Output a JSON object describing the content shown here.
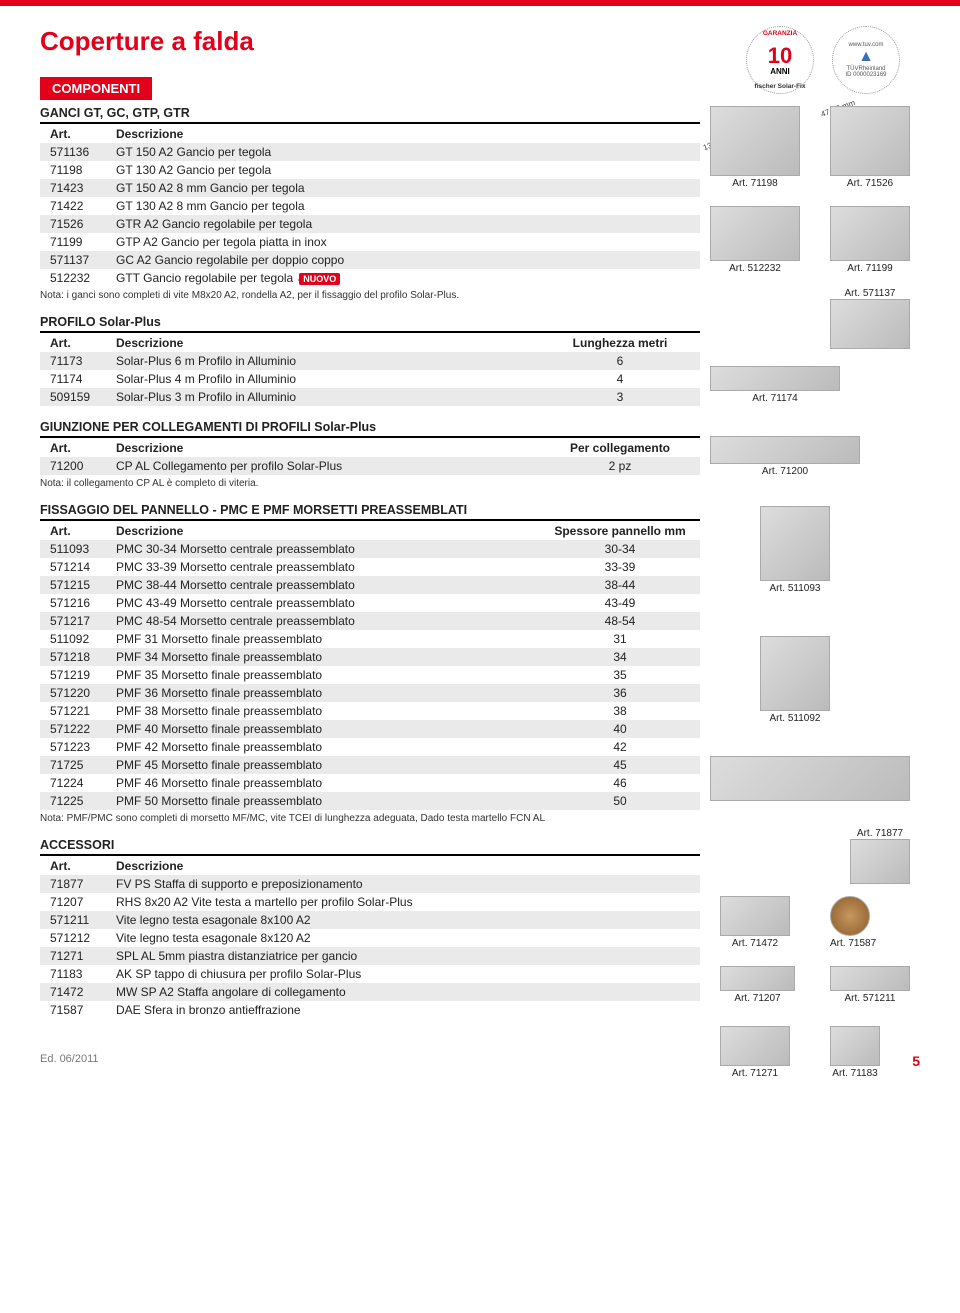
{
  "page": {
    "title": "Coperture a falda",
    "section_tag": "COMPONENTI",
    "edition": "Ed. 06/2011",
    "page_number": "5"
  },
  "badges": {
    "warranty_top": "GARANZIA",
    "warranty_years": "10",
    "warranty_anni": "ANNI",
    "warranty_bottom": "fischer Solar-Fix",
    "tuv_url": "www.tuv.com",
    "tuv_name": "TÜVRheinland",
    "tuv_id": "ID 0000023169"
  },
  "columns": {
    "art": "Art.",
    "desc": "Descrizione",
    "len": "Lunghezza metri",
    "per_coll": "Per collegamento",
    "spessore": "Spessore pannello mm"
  },
  "ganci": {
    "title": "GANCI GT, GC, GTP, GTR",
    "rows": [
      {
        "art": "571136",
        "desc": "GT 150 A2 Gancio per tegola"
      },
      {
        "art": "71198",
        "desc": "GT 130 A2 Gancio per tegola"
      },
      {
        "art": "71423",
        "desc": "GT 150 A2 8 mm Gancio per tegola"
      },
      {
        "art": "71422",
        "desc": "GT 130 A2 8 mm Gancio per tegola"
      },
      {
        "art": "71526",
        "desc": "GTR A2 Gancio regolabile per tegola"
      },
      {
        "art": "71199",
        "desc": "GTP A2 Gancio per tegola piatta in inox"
      },
      {
        "art": "571137",
        "desc": "GC A2 Gancio regolabile per doppio coppo"
      },
      {
        "art": "512232",
        "desc": "GTT Gancio regolabile per tegola",
        "nuovo": "NUOVO"
      }
    ],
    "note": "Nota: i ganci sono completi di vite M8x20 A2, rondella A2, per il fissaggio del profilo Solar-Plus."
  },
  "profilo": {
    "title": "PROFILO Solar-Plus",
    "rows": [
      {
        "art": "71173",
        "desc": "Solar-Plus 6 m Profilo in Alluminio",
        "len": "6"
      },
      {
        "art": "71174",
        "desc": "Solar-Plus 4 m Profilo in Alluminio",
        "len": "4"
      },
      {
        "art": "509159",
        "desc": "Solar-Plus 3 m Profilo in Alluminio",
        "len": "3"
      }
    ]
  },
  "giunzione": {
    "title": "GIUNZIONE PER COLLEGAMENTI DI PROFILI Solar-Plus",
    "rows": [
      {
        "art": "71200",
        "desc": "CP AL Collegamento per profilo Solar-Plus",
        "per": "2 pz"
      }
    ],
    "note": "Nota: il collegamento CP AL è completo di viteria."
  },
  "fissaggio": {
    "title": "FISSAGGIO DEL PANNELLO - PMC E PMF MORSETTI PREASSEMBLATI",
    "rows": [
      {
        "art": "511093",
        "desc": "PMC 30-34 Morsetto centrale preassemblato",
        "sp": "30-34"
      },
      {
        "art": "571214",
        "desc": "PMC 33-39  Morsetto centrale preassemblato",
        "sp": "33-39"
      },
      {
        "art": "571215",
        "desc": "PMC 38-44 Morsetto centrale preassemblato",
        "sp": "38-44"
      },
      {
        "art": "571216",
        "desc": "PMC 43-49 Morsetto centrale preassemblato",
        "sp": "43-49"
      },
      {
        "art": "571217",
        "desc": "PMC 48-54 Morsetto centrale preassemblato",
        "sp": "48-54"
      },
      {
        "art": "511092",
        "desc": "PMF 31 Morsetto finale preassemblato",
        "sp": "31"
      },
      {
        "art": "571218",
        "desc": "PMF 34 Morsetto finale preassemblato",
        "sp": "34"
      },
      {
        "art": "571219",
        "desc": "PMF 35 Morsetto finale preassemblato",
        "sp": "35"
      },
      {
        "art": "571220",
        "desc": "PMF 36 Morsetto finale preassemblato",
        "sp": "36"
      },
      {
        "art": "571221",
        "desc": "PMF 38 Morsetto finale preassemblato",
        "sp": "38"
      },
      {
        "art": "571222",
        "desc": "PMF 40 Morsetto finale preassemblato",
        "sp": "40"
      },
      {
        "art": "571223",
        "desc": "PMF 42 Morsetto finale preassemblato",
        "sp": "42"
      },
      {
        "art": "71725",
        "desc": "PMF 45 Morsetto finale preassemblato",
        "sp": "45"
      },
      {
        "art": "71224",
        "desc": "PMF 46 Morsetto finale preassemblato",
        "sp": "46"
      },
      {
        "art": "71225",
        "desc": "PMF 50 Morsetto finale preassemblato",
        "sp": "50"
      }
    ],
    "note": "Nota: PMF/PMC sono completi di morsetto MF/MC, vite TCEI di lunghezza adeguata, Dado testa martello FCN AL"
  },
  "accessori": {
    "title": "ACCESSORI",
    "rows": [
      {
        "art": "71877",
        "desc": "FV PS Staffa di supporto e preposizionamento"
      },
      {
        "art": "71207",
        "desc": "RHS 8x20 A2 Vite testa a martello per profilo Solar-Plus"
      },
      {
        "art": "571211",
        "desc": "Vite legno testa esagonale 8x100 A2"
      },
      {
        "art": "571212",
        "desc": "Vite legno testa esagonale 8x120 A2"
      },
      {
        "art": "71271",
        "desc": "SPL AL 5mm piastra distanziatrice per gancio"
      },
      {
        "art": "71183",
        "desc": "AK SP tappo di chiusura per profilo Solar-Plus"
      },
      {
        "art": "71472",
        "desc": "MW SP A2 Staffa angolare di collegamento"
      },
      {
        "art": "71587",
        "desc": "DAE Sfera in bronzo antieffrazione"
      }
    ]
  },
  "prod_labels": {
    "a71198": "Art. 71198",
    "a71526": "Art. 71526",
    "a512232": "Art. 512232",
    "a71199": "Art. 71199",
    "a571137": "Art. 571137",
    "a71174": "Art. 71174",
    "a71200": "Art. 71200",
    "a511093": "Art. 511093",
    "a511092": "Art. 511092",
    "a71877": "Art. 71877",
    "a71472": "Art. 71472",
    "a71587": "Art. 71587",
    "a71207": "Art. 71207",
    "a571211": "Art. 571211",
    "a71271": "Art. 71271",
    "a71183": "Art. 71183"
  },
  "hook_dims": {
    "d1": "47-72 mm",
    "d2": "130/150 mm"
  }
}
